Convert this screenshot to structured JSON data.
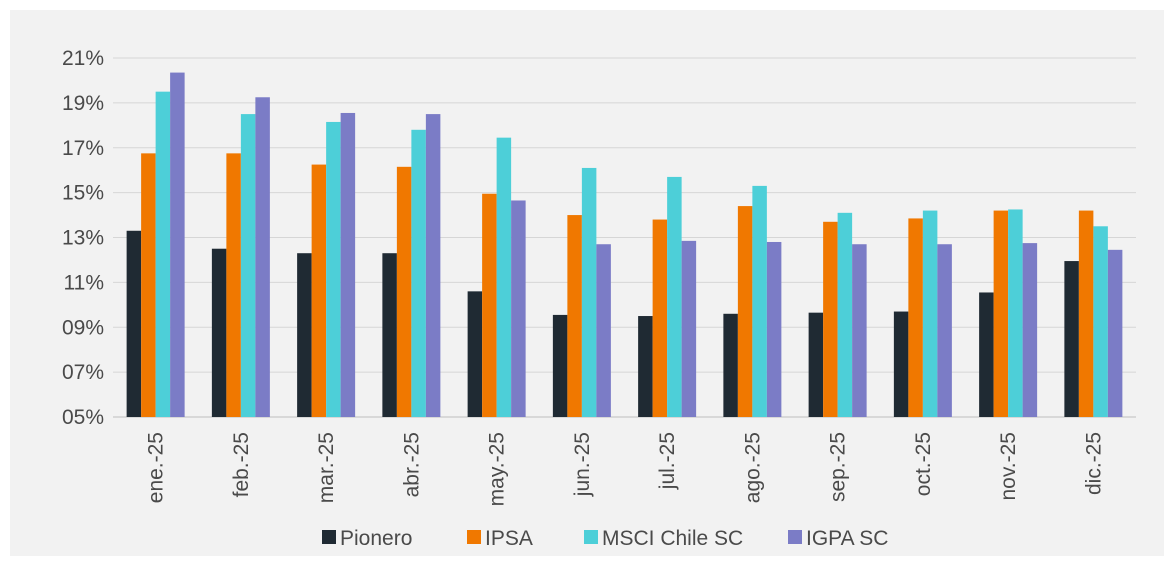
{
  "chart_data": {
    "type": "bar",
    "categories": [
      "ene.-25",
      "feb.-25",
      "mar.-25",
      "abr.-25",
      "may.-25",
      "jun.-25",
      "jul.-25",
      "ago.-25",
      "sep.-25",
      "oct.-25",
      "nov.-25",
      "dic.-25"
    ],
    "series": [
      {
        "name": "Pionero",
        "color": "#1f2a33",
        "values": [
          13.3,
          12.5,
          12.3,
          12.3,
          10.6,
          9.55,
          9.5,
          9.6,
          9.65,
          9.7,
          10.55,
          11.95
        ]
      },
      {
        "name": "IPSA",
        "color": "#f07800",
        "values": [
          16.75,
          16.75,
          16.25,
          16.15,
          14.95,
          14.0,
          13.8,
          14.4,
          13.7,
          13.85,
          14.2,
          14.2
        ]
      },
      {
        "name": "MSCI Chile SC",
        "color": "#4dcfd8",
        "values": [
          19.5,
          18.5,
          18.15,
          17.8,
          17.45,
          16.1,
          15.7,
          15.3,
          14.1,
          14.2,
          14.25,
          13.5
        ]
      },
      {
        "name": "IGPA SC",
        "color": "#7b7cc6",
        "values": [
          20.35,
          19.25,
          18.55,
          18.5,
          14.65,
          12.7,
          12.85,
          12.8,
          12.7,
          12.7,
          12.75,
          12.45
        ]
      }
    ],
    "yticks": [
      "05%",
      "07%",
      "09%",
      "11%",
      "13%",
      "15%",
      "17%",
      "19%",
      "21%"
    ],
    "ylim": [
      5,
      21
    ],
    "title": "",
    "xlabel": "",
    "ylabel": "",
    "grid": true,
    "legend_position": "bottom"
  }
}
